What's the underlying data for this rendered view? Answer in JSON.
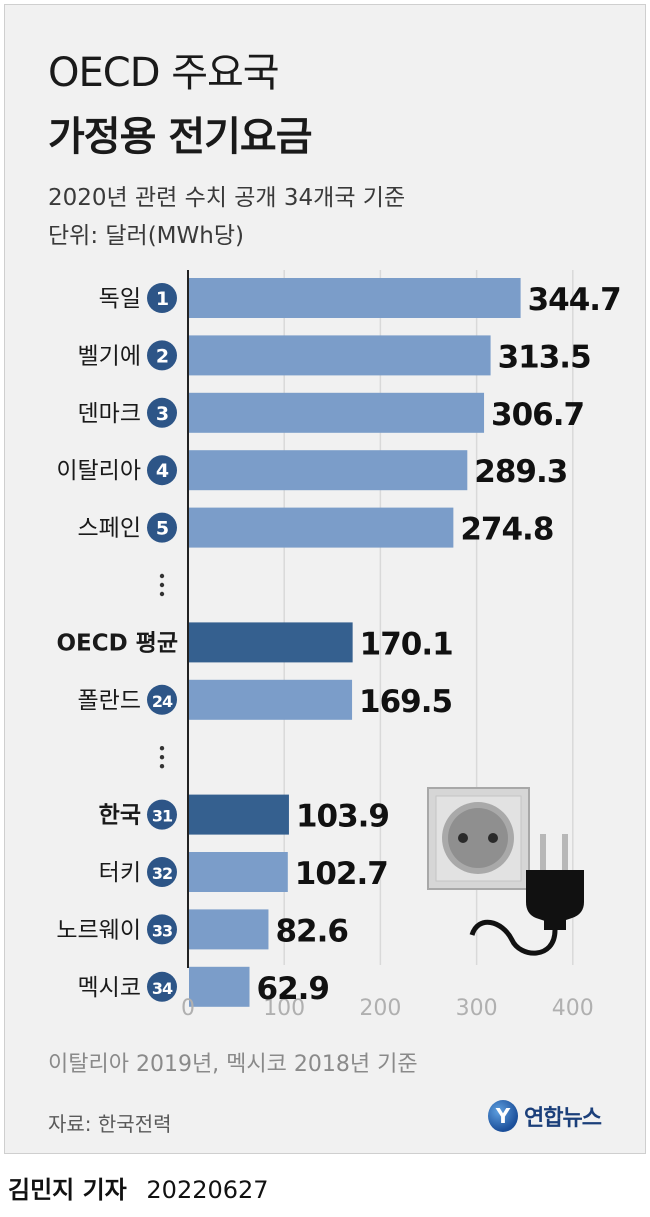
{
  "title_line1": "OECD 주요국",
  "title_line2": "가정용 전기요금",
  "subtitle1": "2020년 관련 수치 공개 34개국 기준",
  "subtitle2": "단위: 달러(MWh당)",
  "note": "이탈리아 2019년, 멕시코 2018년 기준",
  "source": "자료: 한국전력",
  "logo_text": "연합뉴스",
  "byline_name": "김민지 기자",
  "byline_date": "20220627",
  "colors": {
    "bar": "#7b9dc9",
    "highlight": "#35608f",
    "badge": "#2d5587"
  },
  "chart_data": {
    "type": "bar",
    "orientation": "horizontal",
    "xlim": [
      0,
      400
    ],
    "xticks": [
      0,
      100,
      200,
      300,
      400
    ],
    "grid": true,
    "rows": [
      {
        "label": "독일",
        "rank": "1",
        "value": 344.7,
        "display": "344.7",
        "highlight": false
      },
      {
        "label": "벨기에",
        "rank": "2",
        "value": 313.5,
        "display": "313.5",
        "highlight": false
      },
      {
        "label": "덴마크",
        "rank": "3",
        "value": 306.7,
        "display": "306.7",
        "highlight": false
      },
      {
        "label": "이탈리아",
        "rank": "4",
        "value": 289.3,
        "display": "289.3",
        "highlight": false
      },
      {
        "label": "스페인",
        "rank": "5",
        "value": 274.8,
        "display": "274.8",
        "highlight": false
      },
      {
        "gap": true
      },
      {
        "label": "OECD 평균",
        "rank": "",
        "value": 170.1,
        "display": "170.1",
        "highlight": true
      },
      {
        "label": "폴란드",
        "rank": "24",
        "value": 169.5,
        "display": "169.5",
        "highlight": false
      },
      {
        "gap": true
      },
      {
        "label": "한국",
        "rank": "31",
        "value": 103.9,
        "display": "103.9",
        "highlight": true
      },
      {
        "label": "터키",
        "rank": "32",
        "value": 102.7,
        "display": "102.7",
        "highlight": false
      },
      {
        "label": "노르웨이",
        "rank": "33",
        "value": 82.6,
        "display": "82.6",
        "highlight": false
      },
      {
        "label": "멕시코",
        "rank": "34",
        "value": 62.9,
        "display": "62.9",
        "highlight": false
      }
    ]
  }
}
